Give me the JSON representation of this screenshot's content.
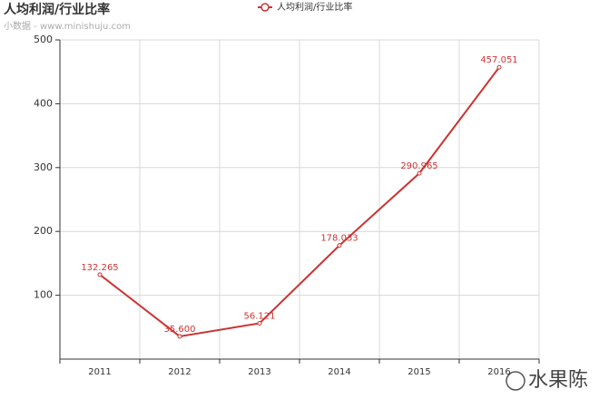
{
  "chart_data": {
    "type": "line",
    "title": "人均利润/行业比率",
    "subtitle": "小数据 - www.minishuju.com",
    "watermark": "水果陈",
    "categories": [
      "2011",
      "2012",
      "2013",
      "2014",
      "2015",
      "2016"
    ],
    "series": [
      {
        "name": "人均利润/行业比率",
        "color": "#cc3333",
        "values": [
          132.265,
          35.6,
          56.121,
          178.033,
          290.965,
          457.051
        ],
        "value_labels": [
          "132.265",
          "35.600",
          "56.121",
          "178.033",
          "290.965",
          "457.051"
        ]
      }
    ],
    "ylim": [
      0,
      500
    ],
    "yticks": [
      100,
      200,
      300,
      400,
      500
    ],
    "grid": true
  }
}
